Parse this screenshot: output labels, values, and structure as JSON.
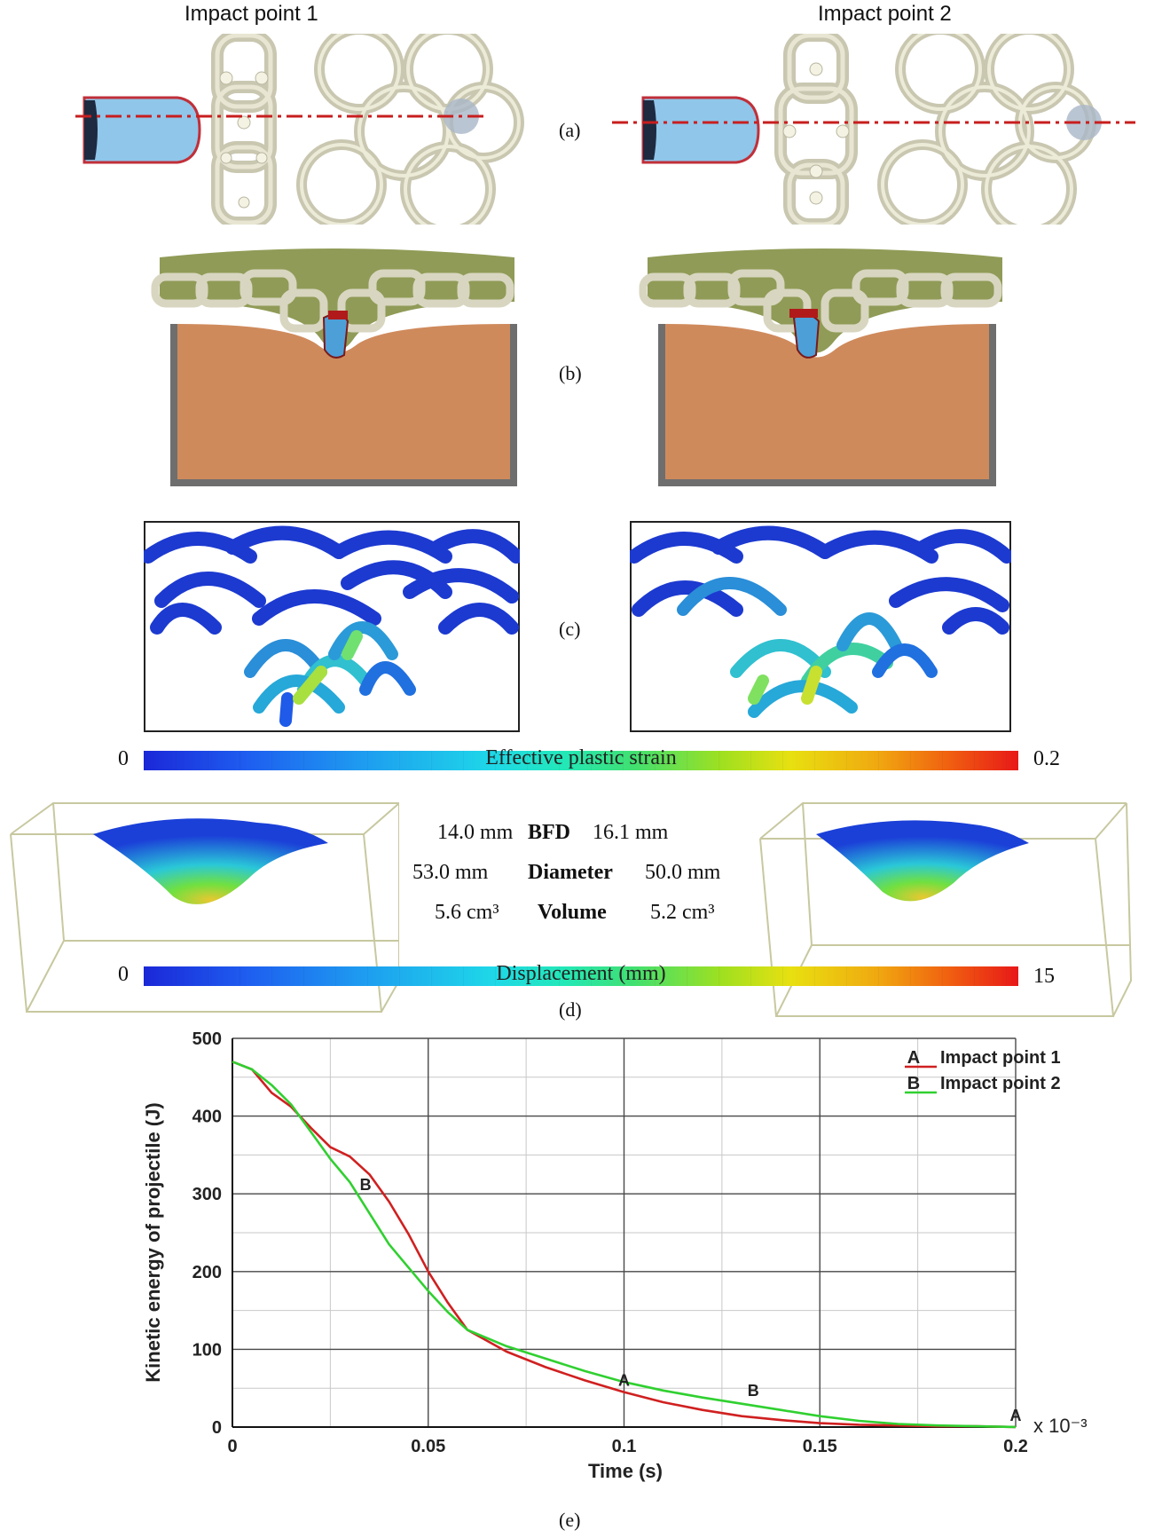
{
  "header": {
    "left_title": "Impact point 1",
    "right_title": "Impact point 2"
  },
  "panel_labels": {
    "a": "(a)",
    "b": "(b)",
    "c": "(c)",
    "d": "(d)",
    "e": "(e)"
  },
  "strain_scale": {
    "min": "0",
    "max": "0.2",
    "title": "Effective plastic strain"
  },
  "displacement_scale": {
    "min": "0",
    "max": "15",
    "title": "Displacement (mm)"
  },
  "stats": [
    {
      "left": "14.0 mm",
      "name": "BFD",
      "right": "16.1 mm"
    },
    {
      "left": "53.0 mm",
      "name": "Diameter",
      "right": "50.0 mm"
    },
    {
      "left": "5.6 cm³",
      "name": "Volume",
      "right": "5.2 cm³"
    }
  ],
  "colors": {
    "projectile_fill": "#8fc6ea",
    "projectile_edge": "#c0303a",
    "chain": "#d8d6c0",
    "backing": "#cf8a5c",
    "frame": "#6e6e6e",
    "line_point1": "#d02020",
    "line_point2": "#30d030"
  },
  "chart_data": {
    "type": "line",
    "title": "",
    "xlabel": "Time (s)",
    "ylabel": "Kinetic energy of projectile (J)",
    "x_multiplier_label": "x 10⁻³",
    "xlim": [
      0,
      0.2
    ],
    "ylim": [
      0,
      500
    ],
    "x_ticks": [
      "0",
      "0.05",
      "0.1",
      "0.15",
      "0.2"
    ],
    "y_ticks": [
      "0",
      "100",
      "200",
      "300",
      "400",
      "500"
    ],
    "legend_position": "top-right",
    "series": [
      {
        "name": "Impact point 1",
        "marker": "A",
        "color": "#d02020",
        "x": [
          0,
          0.005,
          0.01,
          0.015,
          0.02,
          0.025,
          0.03,
          0.035,
          0.04,
          0.045,
          0.05,
          0.055,
          0.06,
          0.07,
          0.08,
          0.09,
          0.1,
          0.11,
          0.12,
          0.13,
          0.14,
          0.15,
          0.16,
          0.17,
          0.18,
          0.19,
          0.2
        ],
        "y": [
          470,
          460,
          430,
          412,
          385,
          360,
          348,
          325,
          290,
          248,
          200,
          160,
          125,
          97,
          77,
          60,
          45,
          32,
          22,
          14,
          9,
          5,
          3,
          2,
          1,
          1,
          0
        ]
      },
      {
        "name": "Impact point 2",
        "marker": "B",
        "color": "#30d030",
        "x": [
          0,
          0.005,
          0.01,
          0.015,
          0.02,
          0.025,
          0.03,
          0.035,
          0.04,
          0.045,
          0.05,
          0.055,
          0.06,
          0.07,
          0.08,
          0.09,
          0.1,
          0.11,
          0.12,
          0.13,
          0.14,
          0.15,
          0.16,
          0.17,
          0.18,
          0.19,
          0.2
        ],
        "y": [
          470,
          460,
          440,
          415,
          380,
          345,
          315,
          275,
          235,
          205,
          175,
          148,
          125,
          104,
          88,
          72,
          58,
          47,
          38,
          30,
          22,
          14,
          8,
          4,
          2,
          1,
          0
        ]
      }
    ],
    "annotations": [
      {
        "text": "B",
        "x": 0.034,
        "y": 305
      },
      {
        "text": "A",
        "x": 0.1,
        "y": 53
      },
      {
        "text": "B",
        "x": 0.133,
        "y": 40
      },
      {
        "text": "A",
        "x": 0.2,
        "y": 8
      }
    ]
  }
}
